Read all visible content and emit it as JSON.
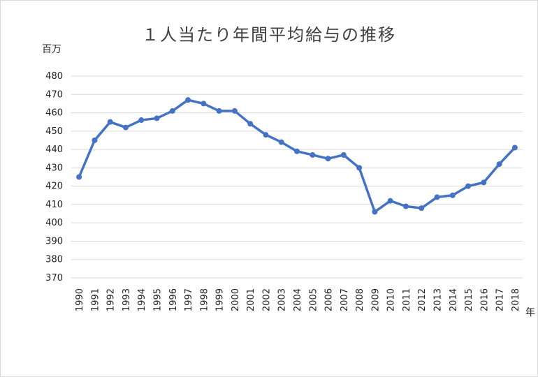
{
  "chart_data": {
    "type": "line",
    "title": "１人当たり年間平均給与の推移",
    "ylabel": "百万",
    "xlabel": "年",
    "ylim": [
      370,
      480
    ],
    "yticks": [
      370,
      380,
      390,
      400,
      410,
      420,
      430,
      440,
      450,
      460,
      470,
      480
    ],
    "grid": true,
    "categories": [
      "1990",
      "1991",
      "1992",
      "1993",
      "1994",
      "1995",
      "1996",
      "1997",
      "1998",
      "1999",
      "2000",
      "2001",
      "2002",
      "2003",
      "2004",
      "2005",
      "2006",
      "2007",
      "2008",
      "2009",
      "2010",
      "2011",
      "2012",
      "2013",
      "2014",
      "2015",
      "2016",
      "2017",
      "2018"
    ],
    "series": [
      {
        "values": [
          425,
          445,
          455,
          452,
          456,
          457,
          461,
          467,
          465,
          461,
          461,
          454,
          448,
          444,
          439,
          437,
          435,
          437,
          430,
          406,
          412,
          409,
          408,
          414,
          415,
          420,
          422,
          432,
          441
        ],
        "color": "#4472c4"
      }
    ]
  }
}
